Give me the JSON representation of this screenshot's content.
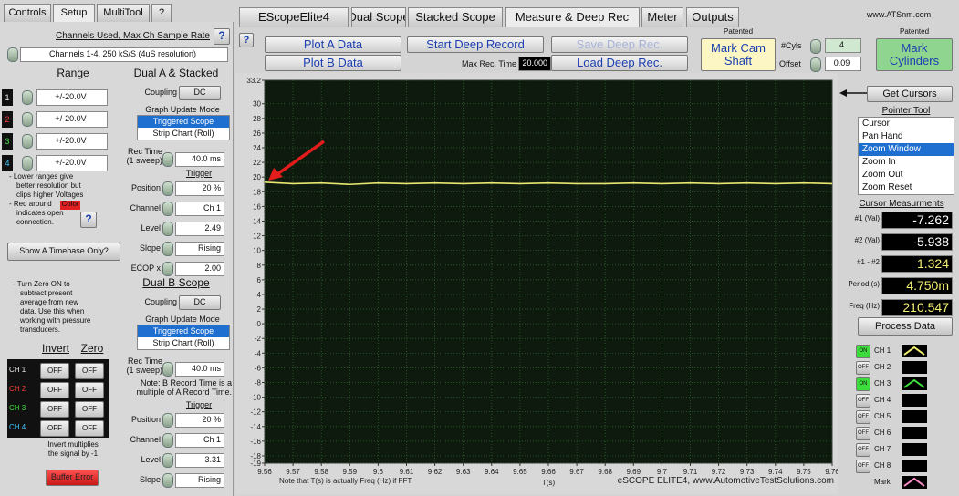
{
  "left_tabs": [
    "Controls",
    "Setup",
    "MultiTool",
    "?"
  ],
  "top_tabs": [
    "EScopeElite4",
    "Dual Scope",
    "Stacked Scope",
    "Measure & Deep Rec",
    "Meter",
    "Outputs"
  ],
  "website": "www.ATSnm.com",
  "setup": {
    "channels_heading": "Channels Used, Max Ch Sample Rate",
    "help": "?",
    "channels_select": "Channels 1-4, 250 kS/S (4uS resolution)",
    "range_heading": "Range",
    "ranges": [
      {
        "channel": "1",
        "value": "+/-20.0V"
      },
      {
        "channel": "2",
        "value": "+/-20.0V"
      },
      {
        "channel": "3",
        "value": "+/-20.0V"
      },
      {
        "channel": "4",
        "value": "+/-20.0V"
      }
    ],
    "range_note": [
      "- Lower ranges give",
      "better resolution but",
      "clips higher Voltages",
      "- Red around",
      "indicates open",
      "connection."
    ],
    "color_word": "Color",
    "help_2": "?",
    "timebase_button": "Show A Timebase Only?",
    "zero_note": [
      "- Turn Zero ON to",
      "subtract present",
      "average from new",
      "data. Use this when",
      "working with pressure",
      "transducers."
    ],
    "invert_heading": "Invert",
    "zero_heading": "Zero",
    "invert_rows": [
      {
        "channel": "CH 1",
        "invert": "OFF",
        "zero": "OFF"
      },
      {
        "channel": "CH 2",
        "invert": "OFF",
        "zero": "OFF"
      },
      {
        "channel": "CH 3",
        "invert": "OFF",
        "zero": "OFF"
      },
      {
        "channel": "CH 4",
        "invert": "OFF",
        "zero": "OFF"
      }
    ],
    "invert_note": [
      "Invert multiplies",
      "the signal by -1"
    ],
    "buffer_button": "Buffer Error"
  },
  "dual_a": {
    "heading": "Dual A & Stacked",
    "coupling_label": "Coupling",
    "coupling": "DC",
    "mode_label": "Graph Update Mode",
    "modes": [
      "Triggered Scope",
      "Strip Chart (Roll)"
    ],
    "rec_label": "Rec Time (1 sweep)",
    "rec_value": "40.0 ms",
    "trigger_heading": "Trigger",
    "fields": [
      {
        "label": "Position",
        "value": "20 %"
      },
      {
        "label": "Channel",
        "value": "Ch 1"
      },
      {
        "label": "Level",
        "value": "2.49"
      },
      {
        "label": "Slope",
        "value": "Rising"
      },
      {
        "label": "ECOP x",
        "value": "2.00"
      }
    ]
  },
  "dual_b": {
    "heading": "Dual B Scope",
    "coupling_label": "Coupling",
    "coupling": "DC",
    "mode_label": "Graph Update Mode",
    "modes": [
      "Triggered Scope",
      "Strip Chart (Roll)"
    ],
    "rec_label": "Rec Time (1 sweep)",
    "rec_value": "40.0 ms",
    "note": "Note: B Record Time is a multiple of A Record Time.",
    "trigger_heading": "Trigger",
    "fields": [
      {
        "label": "Position",
        "value": "20 %"
      },
      {
        "label": "Channel",
        "value": "Ch 1"
      },
      {
        "label": "Level",
        "value": "3.31"
      },
      {
        "label": "Slope",
        "value": "Rising"
      }
    ]
  },
  "toolbar": {
    "help": "?",
    "plot_a": "Plot A Data",
    "plot_b": "Plot B Data",
    "start_deep": "Start Deep Record",
    "max_rec_label": "Max Rec. Time",
    "max_rec_value": "20.000",
    "save_deep": "Save Deep Rec.",
    "load_deep": "Load Deep Rec.",
    "patented_1": "Patented",
    "mark_cam": "Mark Cam Shaft",
    "cyls_label": "#Cyls",
    "cyls_value": "4",
    "offset_label": "Offset",
    "offset_value": "0.09",
    "patented_2": "Patented",
    "mark_cylinders": "Mark Cylinders"
  },
  "chart_data": {
    "type": "line",
    "x": [
      9.56,
      9.57,
      9.58,
      9.59,
      9.6,
      9.61,
      9.62,
      9.63,
      9.64,
      9.65,
      9.66,
      9.67,
      9.68,
      9.69,
      9.7,
      9.71,
      9.72,
      9.73,
      9.74,
      9.75,
      9.76
    ],
    "series": [
      {
        "color": "#e8e870",
        "values": [
          19.3,
          19.1,
          19.2,
          19.0,
          19.2,
          19.1,
          19.2,
          19.1,
          19.2,
          19.1,
          19.2,
          19.1,
          19.1,
          19.2,
          19.1,
          19.2,
          19.1,
          19.2,
          19.1,
          19.2,
          19.1
        ]
      }
    ],
    "xlim": [
      9.56,
      9.76
    ],
    "ylim": [
      -19,
      33.2
    ],
    "xticks": [
      9.56,
      9.57,
      9.58,
      9.59,
      9.6,
      9.61,
      9.62,
      9.63,
      9.64,
      9.65,
      9.66,
      9.67,
      9.68,
      9.69,
      9.7,
      9.71,
      9.72,
      9.73,
      9.74,
      9.75,
      9.76
    ],
    "yticks": [
      33.2,
      30,
      28,
      26,
      24,
      22,
      20,
      18,
      16,
      14,
      12,
      10,
      8,
      6,
      4,
      2,
      0,
      -2,
      -4,
      -6,
      -8,
      -10,
      -12,
      -14,
      -16,
      -18,
      -19
    ],
    "grid": true,
    "x_label": "T(s)",
    "note": "Note that T(s) is actually Freq (Hz) if FFT",
    "footer": "eSCOPE ELITE4, www.AutomotiveTestSolutions.com"
  },
  "right_panel": {
    "get_cursors": "Get Cursors",
    "pointer_heading": "Pointer Tool",
    "pointer_tools": [
      "Cursor",
      "Pan Hand",
      "Zoom Window",
      "Zoom In",
      "Zoom Out",
      "Zoom Reset"
    ],
    "cursor_heading": "Cursor Measurments",
    "measurements": [
      {
        "label": "#1 (Val)",
        "value": "-7.262"
      },
      {
        "label": "#2 (Val)",
        "value": "-5.938"
      },
      {
        "label": "#1 - #2",
        "value": "1.324"
      },
      {
        "label": "Period (s)",
        "value": "4.750m"
      },
      {
        "label": "Freq (Hz)",
        "value": "210.547"
      }
    ],
    "process_button": "Process Data",
    "channels": [
      {
        "state": "ON",
        "name": "CH 1"
      },
      {
        "state": "OFF",
        "name": "CH 2"
      },
      {
        "state": "ON",
        "name": "CH 3"
      },
      {
        "state": "OFF",
        "name": "CH 4"
      },
      {
        "state": "OFF",
        "name": "CH 5"
      },
      {
        "state": "OFF",
        "name": "CH 6"
      },
      {
        "state": "OFF",
        "name": "CH 7"
      },
      {
        "state": "OFF",
        "name": "CH 8"
      }
    ],
    "mark_label": "Mark"
  }
}
